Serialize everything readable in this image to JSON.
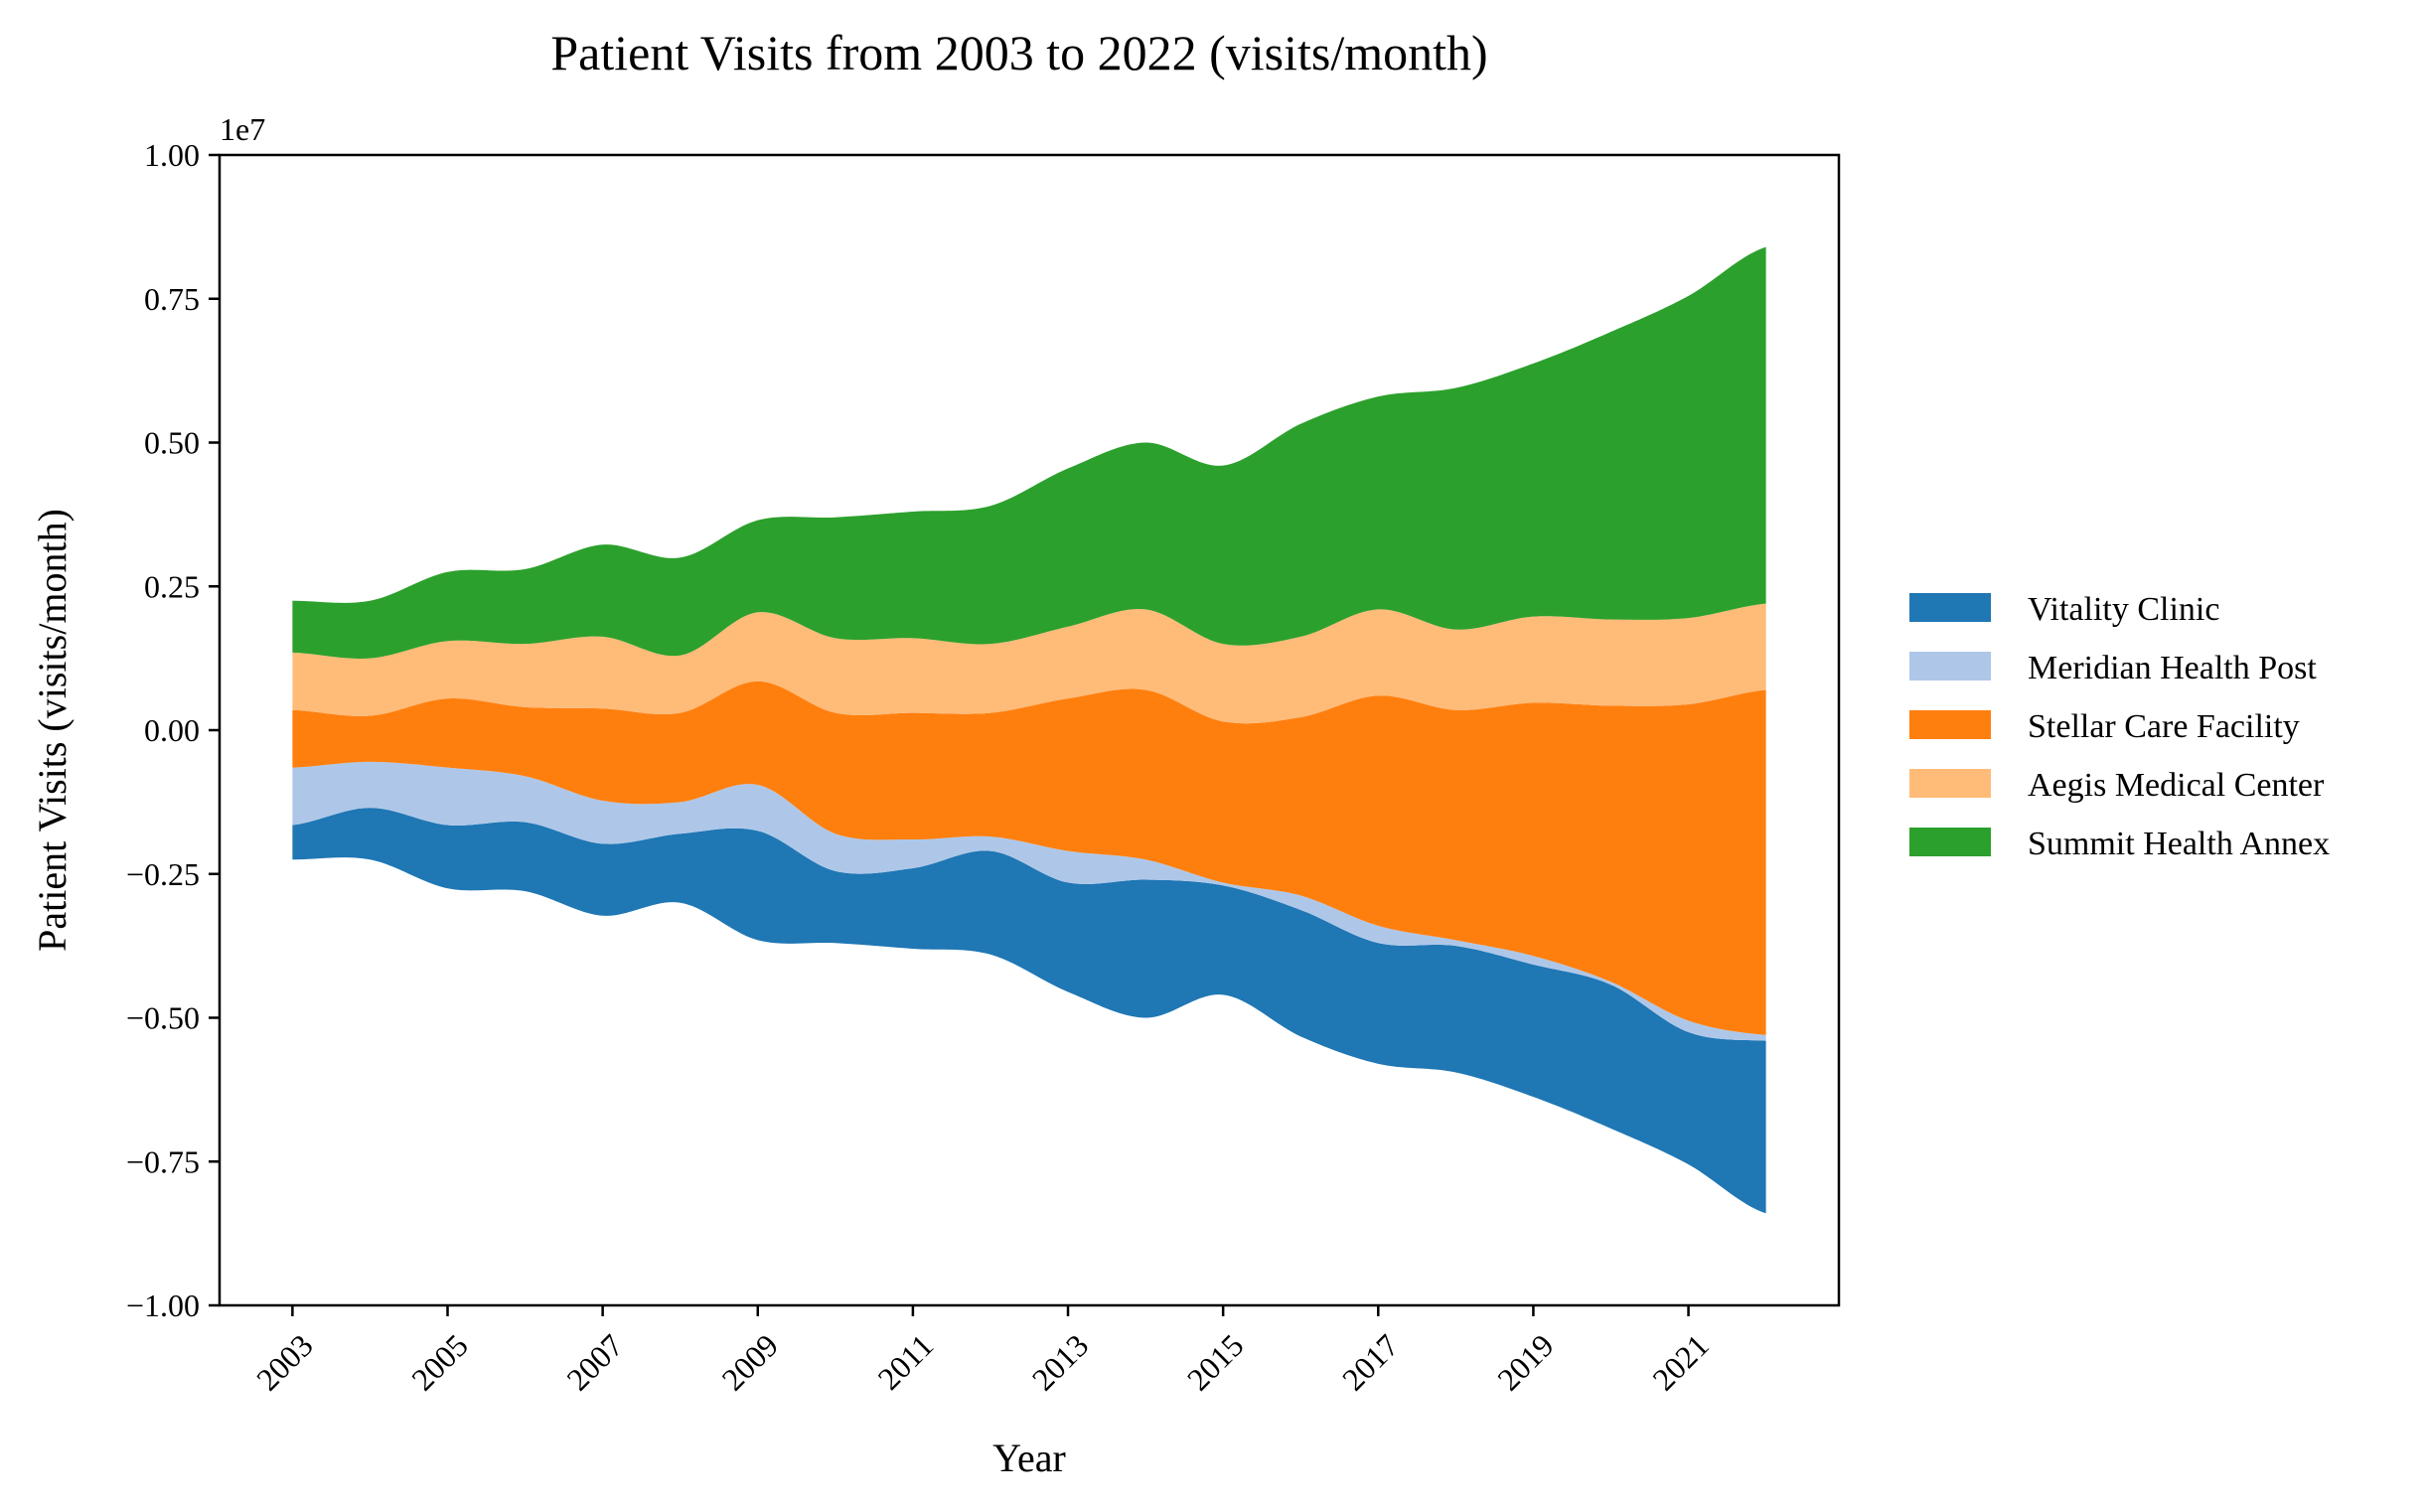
{
  "colors": {
    "vitality": "#1f77b4",
    "meridian": "#aec7e8",
    "stellar": "#ff7f0e",
    "aegis": "#ffbb78",
    "summit": "#2ca02c"
  },
  "chart_data": {
    "type": "area",
    "subtype": "streamgraph",
    "title": "Patient Visits from 2003 to 2022 (visits/month)",
    "xlabel": "Year",
    "ylabel": "Patient Visits (visits/month)",
    "y_offset_text": "1e7",
    "ylim": [
      -10000000,
      10000000
    ],
    "xlim": [
      2002.06,
      2022.94
    ],
    "yticks": [
      -10000000,
      -7500000,
      -5000000,
      -2500000,
      0,
      2500000,
      5000000,
      7500000,
      10000000
    ],
    "ytick_labels": [
      "−1.00",
      "−0.75",
      "−0.50",
      "−0.25",
      "0.00",
      "0.25",
      "0.50",
      "0.75",
      "1.00"
    ],
    "xticks": [
      2003,
      2005,
      2007,
      2009,
      2011,
      2013,
      2015,
      2017,
      2019,
      2021
    ],
    "xtick_labels": [
      "2003",
      "2005",
      "2007",
      "2009",
      "2011",
      "2013",
      "2015",
      "2017",
      "2019",
      "2021"
    ],
    "legend_position": "right",
    "grid": false,
    "x": [
      2003,
      2004,
      2005,
      2006,
      2007,
      2008,
      2009,
      2010,
      2011,
      2012,
      2013,
      2014,
      2015,
      2016,
      2017,
      2018,
      2019,
      2020,
      2021,
      2022
    ],
    "series": [
      {
        "name": "Vitality Clinic",
        "color_key": "vitality",
        "values": [
          600000,
          900000,
          1100000,
          1200000,
          1250000,
          1200000,
          1900000,
          1250000,
          1400000,
          1800000,
          1900000,
          2400000,
          1900000,
          2200000,
          2100000,
          2200000,
          2300000,
          2500000,
          2300000,
          3000000
        ]
      },
      {
        "name": "Meridian Health Post",
        "color_key": "meridian",
        "values": [
          1000000,
          800000,
          1000000,
          800000,
          750000,
          550000,
          800000,
          650000,
          500000,
          250000,
          550000,
          350000,
          50000,
          250000,
          300000,
          100000,
          150000,
          50000,
          200000,
          100000
        ]
      },
      {
        "name": "Stellar Care Facility",
        "color_key": "stellar",
        "values": [
          1000000,
          800000,
          1200000,
          1200000,
          1600000,
          1550000,
          1800000,
          2100000,
          2200000,
          2150000,
          2650000,
          2950000,
          2800000,
          3100000,
          4000000,
          4000000,
          4400000,
          4800000,
          5500000,
          6000000
        ]
      },
      {
        "name": "Aegis Medical Center",
        "color_key": "aegis",
        "values": [
          1000000,
          1000000,
          1000000,
          1100000,
          1250000,
          1000000,
          1200000,
          1300000,
          1300000,
          1200000,
          1250000,
          1400000,
          1350000,
          1400000,
          1500000,
          1400000,
          1500000,
          1500000,
          1500000,
          1500000
        ]
      },
      {
        "name": "Summit Health Annex",
        "color_key": "summit",
        "values": [
          900000,
          1000000,
          1200000,
          1300000,
          1600000,
          1700000,
          1600000,
          2100000,
          2200000,
          2400000,
          2750000,
          2900000,
          3100000,
          3700000,
          3700000,
          4200000,
          4400000,
          5000000,
          5600000,
          6200000
        ]
      }
    ]
  }
}
